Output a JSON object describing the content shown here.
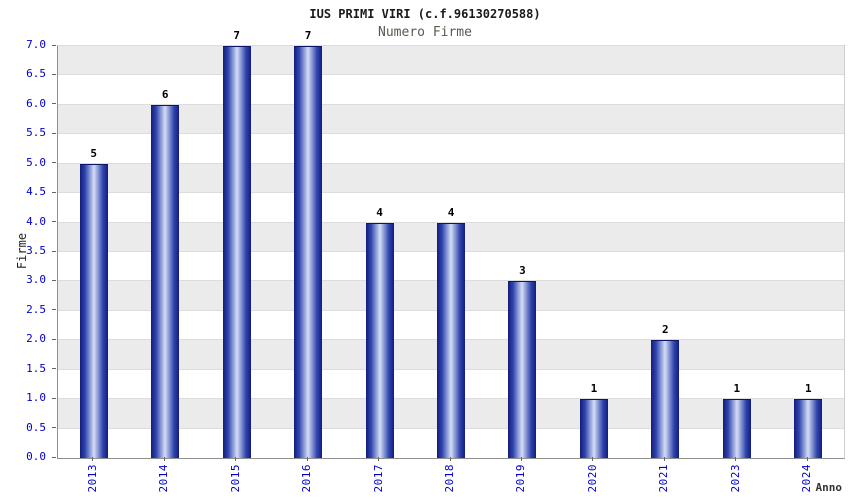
{
  "chart_data": {
    "type": "bar",
    "title": "IUS PRIMI VIRI (c.f.96130270588)",
    "subtitle": "Numero Firme",
    "xlabel": "Anno",
    "ylabel": "Firme",
    "categories": [
      "2013",
      "2014",
      "2015",
      "2016",
      "2017",
      "2018",
      "2019",
      "2020",
      "2021",
      "2023",
      "2024"
    ],
    "values": [
      5,
      6,
      7,
      7,
      4,
      4,
      3,
      1,
      2,
      1,
      1
    ],
    "ylim": [
      0,
      7
    ],
    "ytick_step": 0.5,
    "grid": true,
    "legend": false,
    "colors": {
      "bar_edge": "#131c7c",
      "bar_mid": "#2e44ad",
      "bar_center": "#d4ddf5",
      "tick_label": "#0000cc",
      "value_label": "#000000",
      "band_base": "#ffffff",
      "band_alt": "#ebebeb",
      "gridline": "#dcdcdc"
    }
  }
}
